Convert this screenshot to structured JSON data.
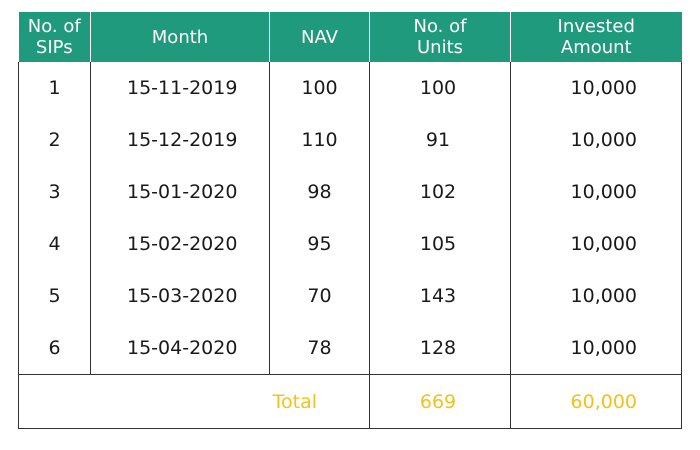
{
  "headers": {
    "sips": [
      "No. of",
      "SIPs"
    ],
    "month": "Month",
    "nav": "NAV",
    "units": [
      "No. of",
      "Units"
    ],
    "amount": [
      "Invested",
      "Amount"
    ]
  },
  "rows": [
    {
      "sip": "1",
      "month": "15-11-2019",
      "nav": "100",
      "units": "100",
      "amount": "10,000"
    },
    {
      "sip": "2",
      "month": "15-12-2019",
      "nav": "110",
      "units": "91",
      "amount": "10,000"
    },
    {
      "sip": "3",
      "month": "15-01-2020",
      "nav": "98",
      "units": "102",
      "amount": "10,000"
    },
    {
      "sip": "4",
      "month": "15-02-2020",
      "nav": "95",
      "units": "105",
      "amount": "10,000"
    },
    {
      "sip": "5",
      "month": "15-03-2020",
      "nav": "70",
      "units": "143",
      "amount": "10,000"
    },
    {
      "sip": "6",
      "month": "15-04-2020",
      "nav": "78",
      "units": "128",
      "amount": "10,000"
    }
  ],
  "total": {
    "label": "Total",
    "units": "669",
    "amount": "60,000"
  },
  "colors": {
    "header_bg": "#1f9a7c",
    "header_text": "#ffffff",
    "total_text": "#f1c21b"
  }
}
